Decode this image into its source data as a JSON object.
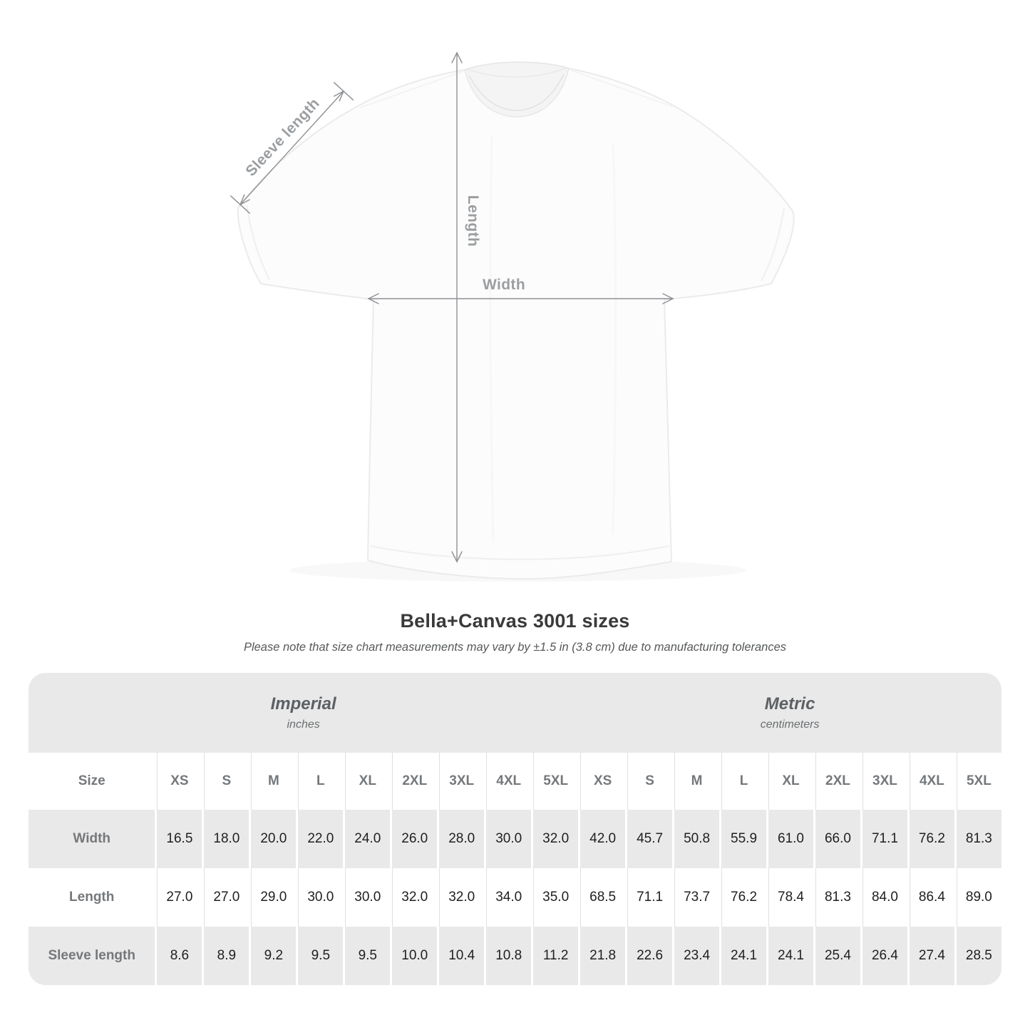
{
  "diagram": {
    "labels": {
      "sleeve": "Sleeve length",
      "length": "Length",
      "width": "Width"
    }
  },
  "header": {
    "title": "Bella+Canvas 3001 sizes",
    "note": "Please note that size chart measurements may vary by ±1.5 in (3.8 cm) due to manufacturing tolerances"
  },
  "table": {
    "size_label": "Size",
    "groups": [
      {
        "name": "Imperial",
        "unit": "inches"
      },
      {
        "name": "Metric",
        "unit": "centimeters"
      }
    ],
    "sizes": [
      "XS",
      "S",
      "M",
      "L",
      "XL",
      "2XL",
      "3XL",
      "4XL",
      "5XL"
    ],
    "rows": [
      {
        "label": "Width",
        "imperial": [
          "16.5",
          "18.0",
          "20.0",
          "22.0",
          "24.0",
          "26.0",
          "28.0",
          "30.0",
          "32.0"
        ],
        "metric": [
          "42.0",
          "45.7",
          "50.8",
          "55.9",
          "61.0",
          "66.0",
          "71.1",
          "76.2",
          "81.3"
        ]
      },
      {
        "label": "Length",
        "imperial": [
          "27.0",
          "27.0",
          "29.0",
          "30.0",
          "30.0",
          "32.0",
          "32.0",
          "34.0",
          "35.0"
        ],
        "metric": [
          "68.5",
          "71.1",
          "73.7",
          "76.2",
          "78.4",
          "81.3",
          "84.0",
          "86.4",
          "89.0"
        ]
      },
      {
        "label": "Sleeve length",
        "imperial": [
          "8.6",
          "8.9",
          "9.2",
          "9.5",
          "9.5",
          "10.0",
          "10.4",
          "10.8",
          "11.2"
        ],
        "metric": [
          "21.8",
          "22.6",
          "23.4",
          "24.1",
          "24.1",
          "25.4",
          "26.4",
          "27.4",
          "28.5"
        ]
      }
    ]
  },
  "colors": {
    "stripe_gray": "#e9e9e9",
    "label_text": "#75787b",
    "value_text": "#1f1f1f",
    "arrow_gray": "#8d9093",
    "diagram_label_gray": "#9b9ea1",
    "title_text": "#3a3a3a"
  },
  "chart_data": {
    "type": "table",
    "title": "Bella+Canvas 3001 sizes",
    "note": "Please note that size chart measurements may vary by ±1.5 in (3.8 cm) due to manufacturing tolerances",
    "column_groups": [
      "Imperial (inches)",
      "Metric (centimeters)"
    ],
    "columns": [
      "XS",
      "S",
      "M",
      "L",
      "XL",
      "2XL",
      "3XL",
      "4XL",
      "5XL"
    ],
    "rows": [
      {
        "label": "Width",
        "imperial": [
          16.5,
          18.0,
          20.0,
          22.0,
          24.0,
          26.0,
          28.0,
          30.0,
          32.0
        ],
        "metric": [
          42.0,
          45.7,
          50.8,
          55.9,
          61.0,
          66.0,
          71.1,
          76.2,
          81.3
        ]
      },
      {
        "label": "Length",
        "imperial": [
          27.0,
          27.0,
          29.0,
          30.0,
          30.0,
          32.0,
          32.0,
          34.0,
          35.0
        ],
        "metric": [
          68.5,
          71.1,
          73.7,
          76.2,
          78.4,
          81.3,
          84.0,
          86.4,
          89.0
        ]
      },
      {
        "label": "Sleeve length",
        "imperial": [
          8.6,
          8.9,
          9.2,
          9.5,
          9.5,
          10.0,
          10.4,
          10.8,
          11.2
        ],
        "metric": [
          21.8,
          22.6,
          23.4,
          24.1,
          24.1,
          25.4,
          26.4,
          27.4,
          28.5
        ]
      }
    ]
  }
}
